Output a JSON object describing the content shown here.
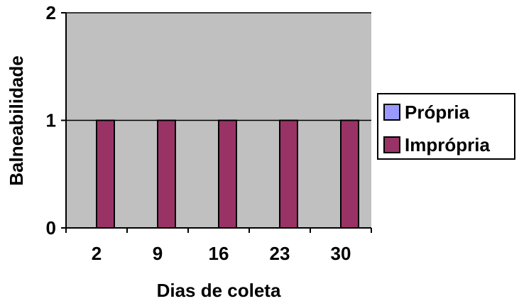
{
  "chart_data": {
    "type": "bar",
    "title": "",
    "xlabel": "Dias de coleta",
    "ylabel": "Balneabilidade",
    "categories": [
      "2",
      "9",
      "16",
      "23",
      "30"
    ],
    "yticks": [
      "0",
      "1",
      "2"
    ],
    "ylim": [
      0,
      2
    ],
    "grid": "horizontal major gridlines",
    "legend_position": "right",
    "series": [
      {
        "name": "Própria",
        "values": [
          0,
          0,
          0,
          0,
          0
        ],
        "color": "#9999ff"
      },
      {
        "name": "Imprópria",
        "values": [
          1,
          1,
          1,
          1,
          1
        ],
        "color": "#993366"
      }
    ],
    "plot_background": "#c0c0c0"
  }
}
